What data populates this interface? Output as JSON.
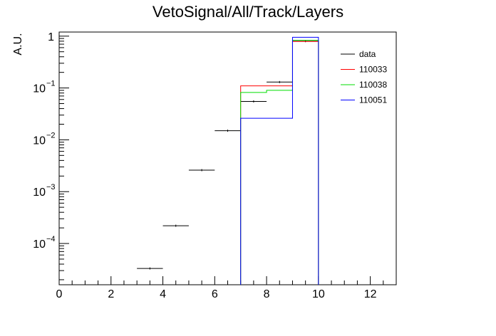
{
  "chart_data": {
    "type": "line",
    "title": "VetoSignal/All/Track/Layers",
    "xlabel": "",
    "ylabel": "A.U.",
    "xlim": [
      0,
      13
    ],
    "ylim": [
      1.6e-05,
      1.2
    ],
    "yscale": "log",
    "grid": false,
    "legend_position": "top-right",
    "x_ticks": [
      0,
      2,
      4,
      6,
      8,
      10,
      12
    ],
    "x_tick_labels": [
      "0",
      "2",
      "4",
      "6",
      "8",
      "10",
      "12"
    ],
    "y_tick_labels": [
      {
        "value": 1,
        "base": "1",
        "exp": ""
      },
      {
        "value": 0.1,
        "base": "10",
        "exp": "−1"
      },
      {
        "value": 0.01,
        "base": "10",
        "exp": "−2"
      },
      {
        "value": 0.001,
        "base": "10",
        "exp": "−3"
      },
      {
        "value": 0.0001,
        "base": "10",
        "exp": "−4"
      }
    ],
    "series": [
      {
        "name": "data",
        "color": "#000000",
        "style": "points",
        "bins": [
          {
            "x0": 3,
            "x1": 4,
            "y": 3.3e-05
          },
          {
            "x0": 4,
            "x1": 5,
            "y": 0.00022
          },
          {
            "x0": 5,
            "x1": 6,
            "y": 0.0026
          },
          {
            "x0": 6,
            "x1": 7,
            "y": 0.015
          },
          {
            "x0": 7,
            "x1": 8,
            "y": 0.055
          },
          {
            "x0": 8,
            "x1": 9,
            "y": 0.13
          },
          {
            "x0": 9,
            "x1": 10,
            "y": 0.8
          }
        ]
      },
      {
        "name": "110033",
        "color": "#ff0000",
        "style": "step",
        "bins": [
          {
            "x0": 7,
            "x1": 9,
            "y": 0.11
          },
          {
            "x0": 9,
            "x1": 10,
            "y": 0.79
          }
        ]
      },
      {
        "name": "110038",
        "color": "#00dd00",
        "style": "step",
        "bins": [
          {
            "x0": 7,
            "x1": 8,
            "y": 0.082
          },
          {
            "x0": 8,
            "x1": 9,
            "y": 0.09
          },
          {
            "x0": 9,
            "x1": 10,
            "y": 0.83
          }
        ]
      },
      {
        "name": "110051",
        "color": "#0000ff",
        "style": "step",
        "bins": [
          {
            "x0": 7,
            "x1": 9,
            "y": 0.026
          },
          {
            "x0": 9,
            "x1": 10,
            "y": 0.95
          }
        ]
      }
    ]
  }
}
